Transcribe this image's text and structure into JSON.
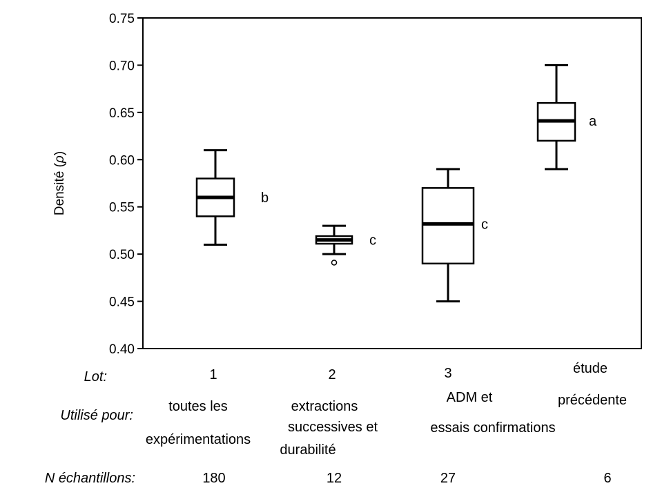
{
  "chart_data": {
    "type": "box",
    "ylabel_main": "Densité (",
    "ylabel_symbol": "ρ",
    "ylabel_end": ")",
    "ylim": [
      0.4,
      0.75
    ],
    "yticks": [
      "0.40",
      "0.45",
      "0.50",
      "0.55",
      "0.60",
      "0.65",
      "0.70",
      "0.75"
    ],
    "grid": false,
    "row_labels": {
      "lot": "Lot:",
      "use": "Utilisé pour:",
      "n": "N  échantillons:"
    },
    "groups": [
      {
        "lot": "1",
        "use_lines": [
          "toutes les",
          "expérimentations"
        ],
        "n": "180",
        "letter": "b",
        "whisker_low": 0.51,
        "q1": 0.54,
        "median": 0.56,
        "q3": 0.58,
        "whisker_high": 0.61,
        "outliers": []
      },
      {
        "lot": "2",
        "use_lines": [
          "extractions",
          "successives et",
          "durabilité"
        ],
        "n": "12",
        "letter": "c",
        "whisker_low": 0.5,
        "q1": 0.511,
        "median": 0.515,
        "q3": 0.519,
        "whisker_high": 0.53,
        "outliers": [
          0.491
        ]
      },
      {
        "lot": "3",
        "use_lines": [
          "ADM et",
          "essais confirmations"
        ],
        "n": "27",
        "letter": "c",
        "whisker_low": 0.45,
        "q1": 0.49,
        "median": 0.532,
        "q3": 0.57,
        "whisker_high": 0.59,
        "outliers": []
      },
      {
        "lot": "étude",
        "use_lines": [
          "précédente"
        ],
        "n": "6",
        "letter": "a",
        "whisker_low": 0.59,
        "q1": 0.62,
        "median": 0.641,
        "q3": 0.66,
        "whisker_high": 0.7,
        "outliers": []
      }
    ]
  }
}
